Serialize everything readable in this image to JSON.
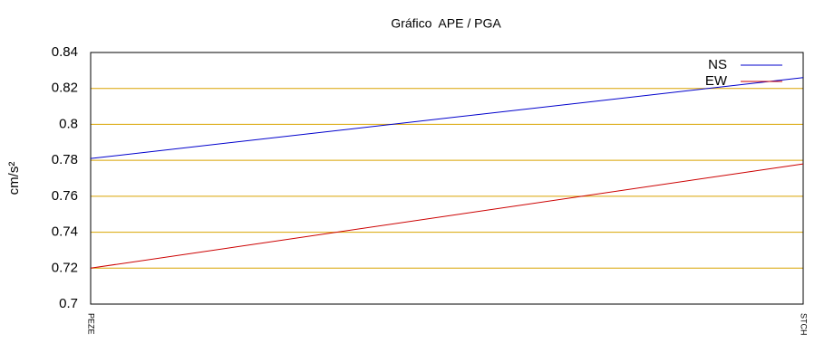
{
  "chart_data": {
    "type": "line",
    "title": "Gráfico  APE / PGA",
    "y_label": "cm/s²",
    "categories": [
      "PEZE",
      "STCH"
    ],
    "series": [
      {
        "name": "NS",
        "color": "#0000cc",
        "values": [
          0.781,
          0.826
        ]
      },
      {
        "name": "EW",
        "color": "#cc0000",
        "values": [
          0.72,
          0.778
        ]
      }
    ],
    "ylim": [
      0.7,
      0.84
    ],
    "yticks": [
      0.7,
      0.72,
      0.74,
      0.76,
      0.78,
      0.8,
      0.82,
      0.84
    ],
    "grid": true,
    "legend": "top-right"
  }
}
